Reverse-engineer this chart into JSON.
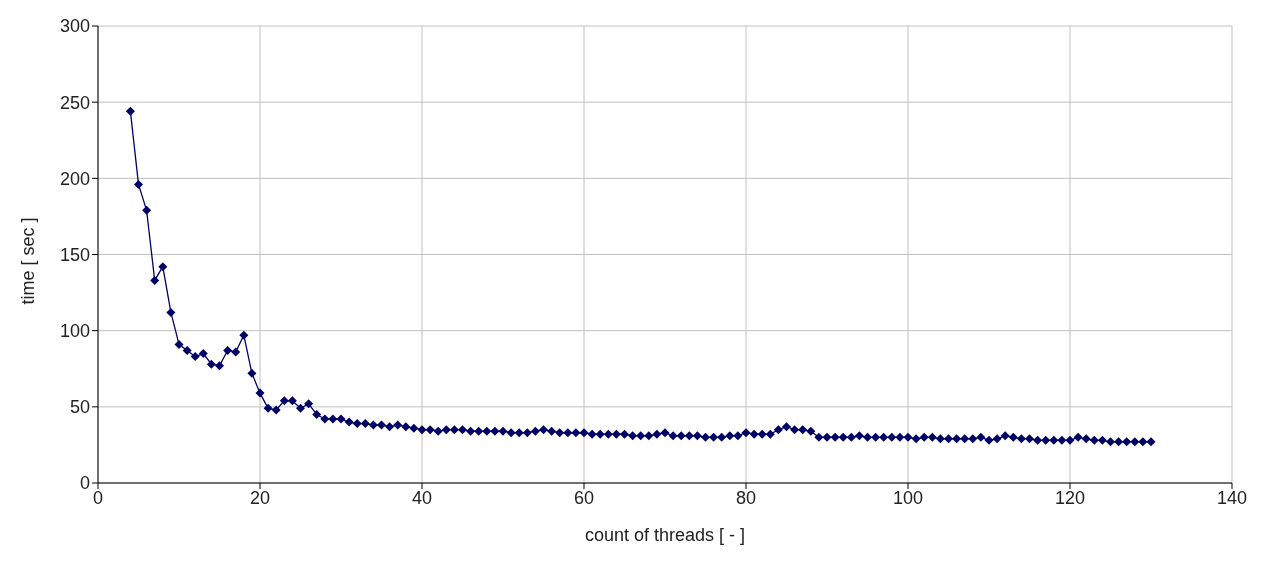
{
  "chart_data": {
    "type": "line",
    "xlabel": "count of threads [ - ]",
    "ylabel": "time [ sec ]",
    "x": [
      4,
      5,
      6,
      7,
      8,
      9,
      10,
      11,
      12,
      13,
      14,
      15,
      16,
      17,
      18,
      19,
      20,
      21,
      22,
      23,
      24,
      25,
      26,
      27,
      28,
      29,
      30,
      31,
      32,
      33,
      34,
      35,
      36,
      37,
      38,
      39,
      40,
      41,
      42,
      43,
      44,
      45,
      46,
      47,
      48,
      49,
      50,
      51,
      52,
      53,
      54,
      55,
      56,
      57,
      58,
      59,
      60,
      61,
      62,
      63,
      64,
      65,
      66,
      67,
      68,
      69,
      70,
      71,
      72,
      73,
      74,
      75,
      76,
      77,
      78,
      79,
      80,
      81,
      82,
      83,
      84,
      85,
      86,
      87,
      88,
      89,
      90,
      91,
      92,
      93,
      94,
      95,
      96,
      97,
      98,
      99,
      100,
      101,
      102,
      103,
      104,
      105,
      106,
      107,
      108,
      109,
      110,
      111,
      112,
      113,
      114,
      115,
      116,
      117,
      118,
      119,
      120,
      121,
      122,
      123,
      124,
      125,
      126,
      127,
      128,
      129,
      130
    ],
    "series": [
      {
        "color": "#000066",
        "values": [
          244,
          196,
          179,
          133,
          142,
          112,
          91,
          87,
          83,
          85,
          78,
          77,
          87,
          86,
          97,
          72,
          59,
          49,
          48,
          54,
          54,
          49,
          52,
          45,
          42,
          42,
          42,
          40,
          39,
          39,
          38,
          38,
          37,
          38,
          37,
          36,
          35,
          35,
          34,
          35,
          35,
          35,
          34,
          34,
          34,
          34,
          34,
          33,
          33,
          33,
          34,
          35,
          34,
          33,
          33,
          33,
          33,
          32,
          32,
          32,
          32,
          32,
          31,
          31,
          31,
          32,
          33,
          31,
          31,
          31,
          31,
          30,
          30,
          30,
          31,
          31,
          33,
          32,
          32,
          32,
          35,
          37,
          35,
          35,
          34,
          30,
          30,
          30,
          30,
          30,
          31,
          30,
          30,
          30,
          30,
          30,
          30,
          29,
          30,
          30,
          29,
          29,
          29,
          29,
          29,
          30,
          28,
          29,
          31,
          30,
          29,
          29,
          28,
          28,
          28,
          28,
          28,
          30,
          29,
          28,
          28,
          27,
          27,
          27,
          27,
          27,
          27
        ]
      }
    ],
    "xlim": [
      0,
      140
    ],
    "xticks": [
      0,
      20,
      40,
      60,
      80,
      100,
      120,
      140
    ],
    "ylim": [
      0,
      300
    ],
    "yticks": [
      0,
      50,
      100,
      150,
      200,
      250,
      300
    ],
    "grid": true,
    "legend": false,
    "marker": "diamond",
    "line_style": "solid"
  }
}
